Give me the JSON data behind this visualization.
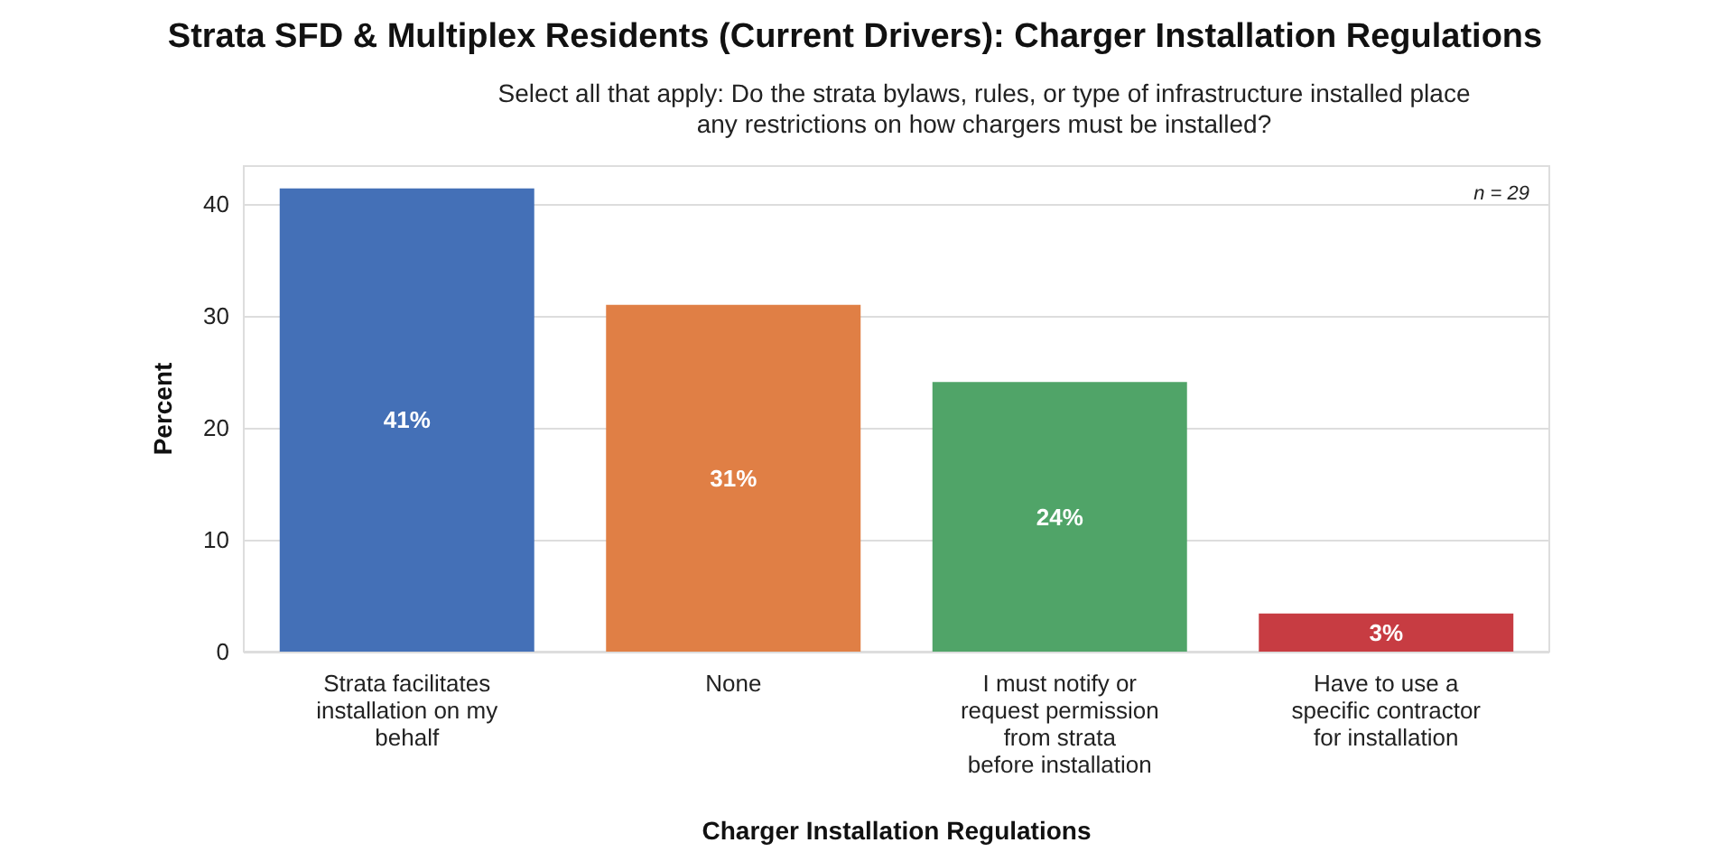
{
  "chart_data": {
    "type": "bar",
    "title": "Strata SFD & Multiplex Residents (Current Drivers): Charger Installation Regulations",
    "subtitle": "Select all that apply: Do the strata bylaws, rules, or type of infrastructure installed place\nany restrictions on how chargers must be installed?",
    "xlabel": "Charger Installation Regulations",
    "ylabel": "Percent",
    "categories": [
      "Strata facilitates\ninstallation on my\nbehalf",
      "None",
      "I must notify or\nrequest permission\nfrom strata\nbefore installation",
      "Have to use a\nspecific contractor\nfor installation"
    ],
    "values": [
      41.4,
      31.0,
      24.1,
      3.4
    ],
    "colors": [
      "#4470b7",
      "#e07f45",
      "#50a468",
      "#c73c42"
    ],
    "value_labels": [
      "41%",
      "31%",
      "24%",
      "3%"
    ],
    "ylim": [
      0,
      43.4
    ],
    "yticks": [
      0,
      10,
      20,
      30,
      40
    ],
    "grid": "y",
    "annotations": [
      "n = 29"
    ]
  }
}
